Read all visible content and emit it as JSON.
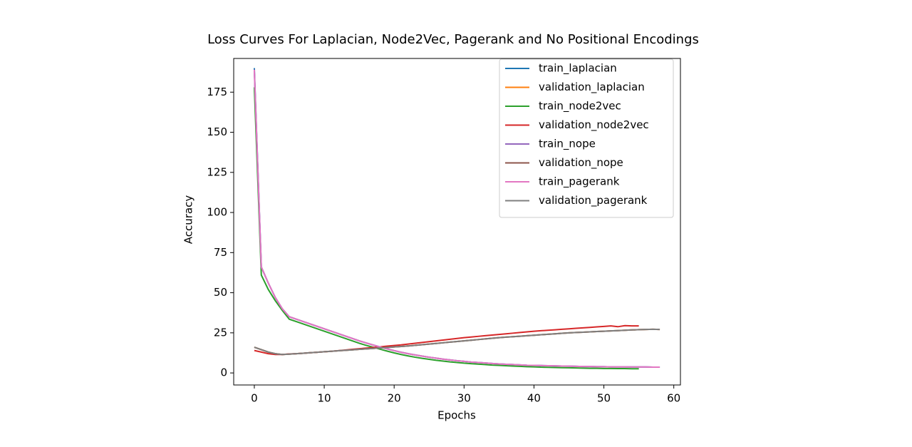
{
  "chart_data": {
    "type": "line",
    "title": "Loss Curves For Laplacian, Node2Vec, Pagerank and No Positional Encodings",
    "x_label": "Epochs",
    "y_label": "Accuracy",
    "x": [
      0,
      1,
      2,
      3,
      4,
      5,
      6,
      7,
      8,
      9,
      10,
      11,
      12,
      13,
      14,
      15,
      16,
      17,
      18,
      19,
      20,
      21,
      22,
      23,
      24,
      25,
      26,
      27,
      28,
      29,
      30,
      31,
      32,
      33,
      34,
      35,
      36,
      37,
      38,
      39,
      40,
      41,
      42,
      43,
      44,
      45,
      46,
      47,
      48,
      49,
      50,
      51,
      52,
      53,
      54,
      55,
      56,
      57,
      58
    ],
    "xlim": [
      -2.95,
      60.95
    ],
    "xticks": [
      0,
      10,
      20,
      30,
      40,
      50,
      60
    ],
    "ylim": [
      -7.5,
      196
    ],
    "yticks": [
      0,
      25,
      50,
      75,
      100,
      125,
      150,
      175
    ],
    "legend": "upper right",
    "series": [
      {
        "name": "train_laplacian",
        "color": "#1f77b4",
        "values": [
          190,
          66,
          56,
          47,
          40,
          35,
          33.5,
          32,
          30.5,
          29,
          27.5,
          26,
          24.5,
          23,
          21.5,
          20,
          18.7,
          17.4,
          16.2,
          15,
          13.9,
          12.9,
          12,
          11.2,
          10.5,
          9.8,
          9.2,
          8.6,
          8.1,
          7.6,
          7.2,
          6.8,
          6.5,
          6.2,
          5.9,
          5.6,
          5.4,
          5.2,
          5,
          4.8,
          4.7,
          4.6,
          4.5,
          4.4,
          4.3,
          4.2,
          4.1,
          4,
          4,
          3.9,
          3.9,
          3.8,
          3.8,
          3.8,
          3.7,
          3.7,
          3.7,
          3.6,
          3.6
        ]
      },
      {
        "name": "validation_laplacian",
        "color": "#ff7f0e",
        "values": [
          16,
          14.5,
          13,
          12,
          11.5,
          11.7,
          12,
          12.3,
          12.6,
          12.9,
          13.2,
          13.5,
          13.8,
          14.1,
          14.4,
          14.7,
          15,
          15.3,
          15.6,
          15.9,
          16.2,
          16.5,
          16.8,
          17.2,
          17.6,
          18,
          18.4,
          18.8,
          19.2,
          19.6,
          20,
          20.4,
          20.8,
          21.2,
          21.6,
          22,
          22.3,
          22.6,
          22.9,
          23.2,
          23.5,
          23.8,
          24.1,
          24.4,
          24.7,
          25,
          25.2,
          25.4,
          25.6,
          25.8,
          26,
          26.2,
          26.4,
          26.6,
          26.8,
          27,
          27.1,
          27.2,
          27.1
        ]
      },
      {
        "name": "train_node2vec",
        "color": "#2ca02c",
        "values": [
          178,
          61,
          52,
          45,
          39,
          33.5,
          32,
          30.5,
          29,
          27.5,
          26,
          24.5,
          23,
          21.5,
          20,
          18.5,
          17.2,
          16,
          14.8,
          13.6,
          12.5,
          11.5,
          10.6,
          9.8,
          9.1,
          8.5,
          7.9,
          7.4,
          6.9,
          6.5,
          6.1,
          5.8,
          5.5,
          5.2,
          4.9,
          4.7,
          4.5,
          4.3,
          4.1,
          3.9,
          3.8,
          3.6,
          3.5,
          3.4,
          3.3,
          3.2,
          3.1,
          3,
          2.9,
          2.9,
          2.8,
          2.8,
          2.7,
          2.7,
          2.6,
          2.6,
          null,
          null,
          null
        ]
      },
      {
        "name": "validation_node2vec",
        "color": "#d62728",
        "values": [
          14,
          13,
          12,
          11.5,
          11.5,
          11.8,
          12,
          12.3,
          12.6,
          12.9,
          13.2,
          13.5,
          13.9,
          14.3,
          14.7,
          15.1,
          15.5,
          15.9,
          16.3,
          16.7,
          17.1,
          17.5,
          18,
          18.5,
          19,
          19.5,
          20,
          20.5,
          21,
          21.5,
          22,
          22.4,
          22.8,
          23.2,
          23.6,
          24,
          24.4,
          24.8,
          25.2,
          25.6,
          26,
          26.3,
          26.6,
          26.9,
          27.2,
          27.5,
          27.8,
          28.1,
          28.4,
          28.7,
          29,
          29.3,
          28.8,
          29.5,
          29.3,
          29.3,
          null,
          null,
          null
        ]
      },
      {
        "name": "train_nope",
        "color": "#9467bd",
        "values": [
          188,
          66,
          56,
          47,
          40,
          35,
          33.5,
          32,
          30.5,
          29,
          27.5,
          26,
          24.5,
          23,
          21.5,
          20,
          18.7,
          17.4,
          16.2,
          15,
          13.9,
          12.9,
          12,
          11.2,
          10.5,
          9.8,
          9.2,
          8.6,
          8.1,
          7.6,
          7.2,
          6.8,
          6.5,
          6.2,
          5.9,
          5.6,
          5.4,
          5.2,
          5,
          4.8,
          4.7,
          4.6,
          4.5,
          4.4,
          4.3,
          4.2,
          4.1,
          4,
          4,
          3.9,
          3.9,
          3.8,
          3.8,
          3.8,
          3.7,
          3.7,
          3.7,
          3.6,
          3.6
        ]
      },
      {
        "name": "validation_nope",
        "color": "#8c564b",
        "values": [
          16,
          14.5,
          13,
          12,
          11.5,
          11.7,
          12,
          12.3,
          12.6,
          12.9,
          13.2,
          13.5,
          13.8,
          14.1,
          14.4,
          14.7,
          15,
          15.3,
          15.6,
          15.9,
          16.2,
          16.5,
          16.8,
          17.2,
          17.6,
          18,
          18.4,
          18.8,
          19.2,
          19.6,
          20,
          20.4,
          20.8,
          21.2,
          21.6,
          22,
          22.3,
          22.6,
          22.9,
          23.2,
          23.5,
          23.8,
          24.1,
          24.4,
          24.7,
          25,
          25.2,
          25.4,
          25.6,
          25.8,
          26,
          26.2,
          26.4,
          26.6,
          26.8,
          27,
          27.1,
          27.2,
          27.1
        ]
      },
      {
        "name": "train_pagerank",
        "color": "#e377c2",
        "values": [
          189,
          66,
          56,
          47,
          40,
          35,
          33.5,
          32,
          30.5,
          29,
          27.5,
          26,
          24.5,
          23,
          21.5,
          20,
          18.7,
          17.4,
          16.2,
          15,
          13.9,
          12.9,
          12,
          11.2,
          10.5,
          9.8,
          9.2,
          8.6,
          8.1,
          7.6,
          7.2,
          6.8,
          6.5,
          6.2,
          5.9,
          5.6,
          5.4,
          5.2,
          5,
          4.8,
          4.7,
          4.6,
          4.5,
          4.4,
          4.3,
          4.2,
          4.1,
          4,
          4,
          3.9,
          3.9,
          3.8,
          3.8,
          3.8,
          3.7,
          3.7,
          3.7,
          3.6,
          3.6
        ]
      },
      {
        "name": "validation_pagerank",
        "color": "#7f7f7f",
        "values": [
          16,
          14.5,
          13,
          12,
          11.5,
          11.7,
          12,
          12.3,
          12.6,
          12.9,
          13.2,
          13.5,
          13.8,
          14.1,
          14.4,
          14.7,
          15,
          15.3,
          15.6,
          15.9,
          16.2,
          16.5,
          16.8,
          17.2,
          17.6,
          18,
          18.4,
          18.8,
          19.2,
          19.6,
          20,
          20.4,
          20.8,
          21.2,
          21.6,
          22,
          22.3,
          22.6,
          22.9,
          23.2,
          23.5,
          23.8,
          24.1,
          24.4,
          24.7,
          25,
          25.2,
          25.4,
          25.6,
          25.8,
          26,
          26.2,
          26.4,
          26.6,
          26.8,
          27,
          27.1,
          27.2,
          27.1
        ]
      }
    ]
  }
}
